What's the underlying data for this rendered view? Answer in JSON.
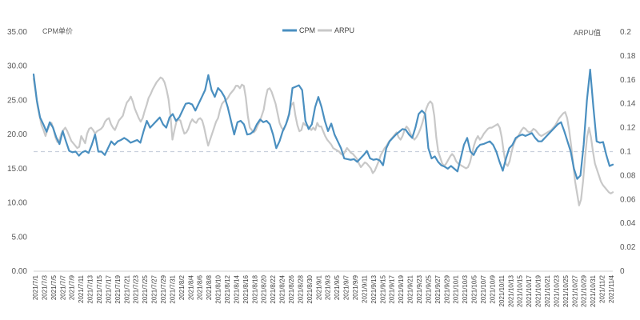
{
  "chart_data": {
    "type": "line",
    "title": "",
    "y_left_label": "CPM单价",
    "y_right_label": "ARPU值",
    "y_left_range": [
      0,
      35
    ],
    "y_left_ticks": [
      "0.00",
      "5.00",
      "10.00",
      "15.00",
      "20.00",
      "25.00",
      "30.00",
      "35.00"
    ],
    "y_right_range": [
      0,
      0.2
    ],
    "y_right_ticks": [
      "0",
      "0.02",
      "0.04",
      "0.06",
      "0.08",
      "0.1",
      "0.12",
      "0.14",
      "0.16",
      "0.18",
      "0.2"
    ],
    "reference_line": {
      "axis": "right",
      "value": 0.1
    },
    "legend_position": "top-center",
    "grid": false,
    "colors": {
      "cpm": "#4a8fc0",
      "arpu": "#c8c8c8",
      "reference": "#c8d0dc"
    },
    "x_labels": [
      "2021/7/1",
      "2021/7/3",
      "2021/7/5",
      "2021/7/7",
      "2021/7/9",
      "2021/7/11",
      "2021/7/13",
      "2021/7/15",
      "2021/7/17",
      "2021/7/19",
      "2021/7/21",
      "2021/7/23",
      "2021/7/25",
      "2021/7/27",
      "2021/7/29",
      "2021/7/31",
      "2021/8/2",
      "2021/8/4",
      "2021/8/6",
      "2021/8/8",
      "2021/8/10",
      "2021/8/12",
      "2021/8/14",
      "2021/8/16",
      "2021/8/18",
      "2021/8/20",
      "2021/8/22",
      "2021/8/24",
      "2021/8/26",
      "2021/8/28",
      "2021/8/30",
      "2021/9/1",
      "2021/9/3",
      "2021/9/5",
      "2021/9/7",
      "2021/9/9",
      "2021/9/11",
      "2021/9/13",
      "2021/9/15",
      "2021/9/17",
      "2021/9/19",
      "2021/9/21",
      "2021/9/23",
      "2021/9/25",
      "2021/9/27",
      "2021/9/29",
      "2021/10/1",
      "2021/10/3",
      "2021/10/5",
      "2021/10/7",
      "2021/10/9",
      "2021/10/11",
      "2021/10/13",
      "2021/10/15",
      "2021/10/17",
      "2021/10/19",
      "2021/10/21",
      "2021/10/23",
      "2021/10/25",
      "2021/10/27",
      "2021/10/29",
      "2021/10/31",
      "2021/11/2",
      "2021/11/4"
    ],
    "series": [
      {
        "name": "CPM",
        "axis": "left",
        "values": [
          28.8,
          25.0,
          22.5,
          21.5,
          20.4,
          21.8,
          21.0,
          19.6,
          18.6,
          20.5,
          19.0,
          17.6,
          17.4,
          17.5,
          16.9,
          17.4,
          17.6,
          17.3,
          18.5,
          20.0,
          17.5,
          17.5,
          17.0,
          18.0,
          19.0,
          18.5,
          19.0,
          19.2,
          19.5,
          19.2,
          18.8,
          19.0,
          19.2,
          18.8,
          20.5,
          22.0,
          21.0,
          21.5,
          22.0,
          22.5,
          21.5,
          21.0,
          22.5,
          23.0,
          22.0,
          22.5,
          23.5,
          24.5,
          24.6,
          24.4,
          23.5,
          24.5,
          25.5,
          26.5,
          28.7,
          26.5,
          25.5,
          26.8,
          26.3,
          25.5,
          24.0,
          22.0,
          20.0,
          21.8,
          22.0,
          21.5,
          20.0,
          20.1,
          20.5,
          21.5,
          22.2,
          21.8,
          22.0,
          21.5,
          20.0,
          18.0,
          19.0,
          20.5,
          21.5,
          23.0,
          26.8,
          27.0,
          27.2,
          26.5,
          22.0,
          20.8,
          21.5,
          24.0,
          25.5,
          24.0,
          22.0,
          20.5,
          21.6,
          20.0,
          19.0,
          18.0,
          16.5,
          16.4,
          16.3,
          16.4,
          16.0,
          16.5,
          17.0,
          17.6,
          16.5,
          16.3,
          16.4,
          16.2,
          15.5,
          18.0,
          19.0,
          19.5,
          20.0,
          20.4,
          20.8,
          20.7,
          20.0,
          19.5,
          21.0,
          23.0,
          23.5,
          23.0,
          18.0,
          16.5,
          16.8,
          16.0,
          15.5,
          15.3,
          15.0,
          15.4,
          15.0,
          14.6,
          16.5,
          18.5,
          19.5,
          17.5,
          17.0,
          18.0,
          18.5,
          18.6,
          18.8,
          19.0,
          18.5,
          17.5,
          16.0,
          14.7,
          16.5,
          18.0,
          18.5,
          19.5,
          19.8,
          20.0,
          19.8,
          20.0,
          20.2,
          19.5,
          19.0,
          19.0,
          19.5,
          20.0,
          20.5,
          21.0,
          21.5,
          21.8,
          20.5,
          19.0,
          17.5,
          15.0,
          13.5,
          14.0,
          18.5,
          25.0,
          29.5,
          24.0,
          19.0,
          18.8,
          18.9,
          17.0,
          15.4,
          15.6
        ]
      },
      {
        "name": "ARPU",
        "axis": "right",
        "values": [
          0.161,
          0.15,
          0.138,
          0.13,
          0.122,
          0.118,
          0.113,
          0.118,
          0.122,
          0.124,
          0.119,
          0.112,
          0.108,
          0.11,
          0.115,
          0.118,
          0.12,
          0.117,
          0.113,
          0.109,
          0.107,
          0.105,
          0.103,
          0.104,
          0.113,
          0.11,
          0.107,
          0.115,
          0.119,
          0.12,
          0.118,
          0.115,
          0.117,
          0.118,
          0.119,
          0.121,
          0.125,
          0.127,
          0.128,
          0.123,
          0.12,
          0.118,
          0.122,
          0.126,
          0.128,
          0.13,
          0.136,
          0.141,
          0.143,
          0.146,
          0.142,
          0.136,
          0.132,
          0.128,
          0.125,
          0.128,
          0.134,
          0.139,
          0.145,
          0.148,
          0.152,
          0.155,
          0.158,
          0.16,
          0.162,
          0.161,
          0.158,
          0.152,
          0.144,
          0.13,
          0.11,
          0.118,
          0.125,
          0.127,
          0.126,
          0.12,
          0.115,
          0.116,
          0.119,
          0.124,
          0.127,
          0.125,
          0.124,
          0.127,
          0.128,
          0.126,
          0.12,
          0.112,
          0.105,
          0.11,
          0.115,
          0.12,
          0.125,
          0.128,
          0.135,
          0.14,
          0.142,
          0.143,
          0.145,
          0.148,
          0.15,
          0.152,
          0.155,
          0.155,
          0.153,
          0.156,
          0.155,
          0.145,
          0.13,
          0.12,
          0.118,
          0.116,
          0.118,
          0.122,
          0.125,
          0.13,
          0.135,
          0.145,
          0.152,
          0.153,
          0.15,
          0.145,
          0.14,
          0.132,
          0.124,
          0.12,
          0.118,
          0.122,
          0.126,
          0.134,
          0.139,
          0.141,
          0.13,
          0.122,
          0.117,
          0.118,
          0.124,
          0.122,
          0.122,
          0.12,
          0.118,
          0.12,
          0.118,
          0.124,
          0.121,
          0.121,
          0.117,
          0.113,
          0.11,
          0.108,
          0.106,
          0.103,
          0.102,
          0.101,
          0.1,
          0.098,
          0.097,
          0.1,
          0.103,
          0.101,
          0.099,
          0.098,
          0.096,
          0.094,
          0.09,
          0.087,
          0.089,
          0.091,
          0.09,
          0.088,
          0.086,
          0.082,
          0.084,
          0.088,
          0.092,
          0.097,
          0.1,
          0.103,
          0.105,
          0.108,
          0.11,
          0.112,
          0.114,
          0.116,
          0.112,
          0.11,
          0.113,
          0.118,
          0.121,
          0.119,
          0.115,
          0.112,
          0.11,
          0.112,
          0.115,
          0.119,
          0.124,
          0.13,
          0.136,
          0.14,
          0.142,
          0.14,
          0.13,
          0.112,
          0.1,
          0.095,
          0.09,
          0.088,
          0.09,
          0.093,
          0.096,
          0.098,
          0.096,
          0.092,
          0.09,
          0.089,
          0.088,
          0.087,
          0.086,
          0.087,
          0.091,
          0.098,
          0.105,
          0.11,
          0.113,
          0.11,
          0.112,
          0.115,
          0.117,
          0.119,
          0.12,
          0.12,
          0.121,
          0.122,
          0.123,
          0.12,
          0.112,
          0.1,
          0.09,
          0.088,
          0.092,
          0.1,
          0.106,
          0.11,
          0.112,
          0.115,
          0.118,
          0.12,
          0.119,
          0.117,
          0.116,
          0.117,
          0.119,
          0.118,
          0.116,
          0.114,
          0.113,
          0.114,
          0.115,
          0.116,
          0.117,
          0.118,
          0.12,
          0.122,
          0.125,
          0.128,
          0.13,
          0.132,
          0.133,
          0.128,
          0.118,
          0.105,
          0.09,
          0.075,
          0.065,
          0.055,
          0.06,
          0.075,
          0.095,
          0.112,
          0.12,
          0.112,
          0.1,
          0.09,
          0.085,
          0.08,
          0.075,
          0.072,
          0.07,
          0.068,
          0.066,
          0.065,
          0.066
        ]
      }
    ]
  }
}
